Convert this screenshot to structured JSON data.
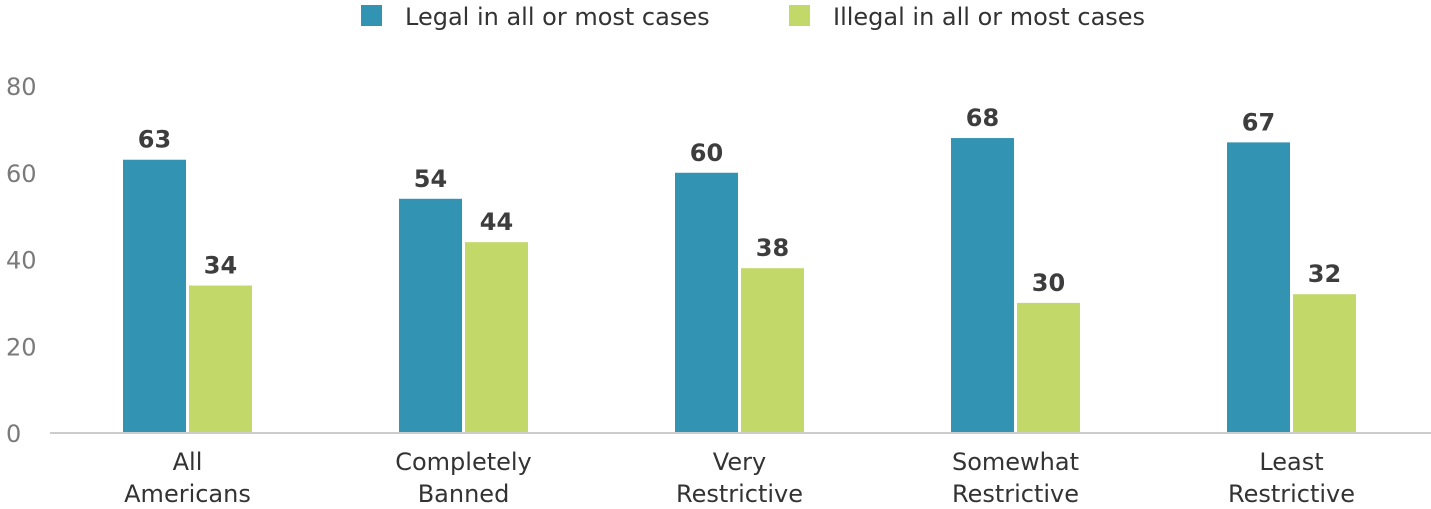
{
  "chart_data": {
    "type": "bar",
    "title": "",
    "xlabel": "",
    "ylabel": "",
    "ylim": [
      0,
      80
    ],
    "yticks": [
      0,
      20,
      40,
      60,
      80
    ],
    "grid": false,
    "legend_position": "top-center",
    "categories": [
      [
        "All",
        "Americans"
      ],
      [
        "Completely",
        "Banned"
      ],
      [
        "Very",
        "Restrictive"
      ],
      [
        "Somewhat",
        "Restrictive"
      ],
      [
        "Least",
        "Restrictive"
      ]
    ],
    "series": [
      {
        "name": "Legal in all or most cases",
        "color": "#3393b2",
        "values": [
          63,
          54,
          60,
          68,
          67
        ]
      },
      {
        "name": "Illegal in all or most cases",
        "color": "#c2d96a",
        "values": [
          34,
          44,
          38,
          30,
          32
        ]
      }
    ]
  }
}
